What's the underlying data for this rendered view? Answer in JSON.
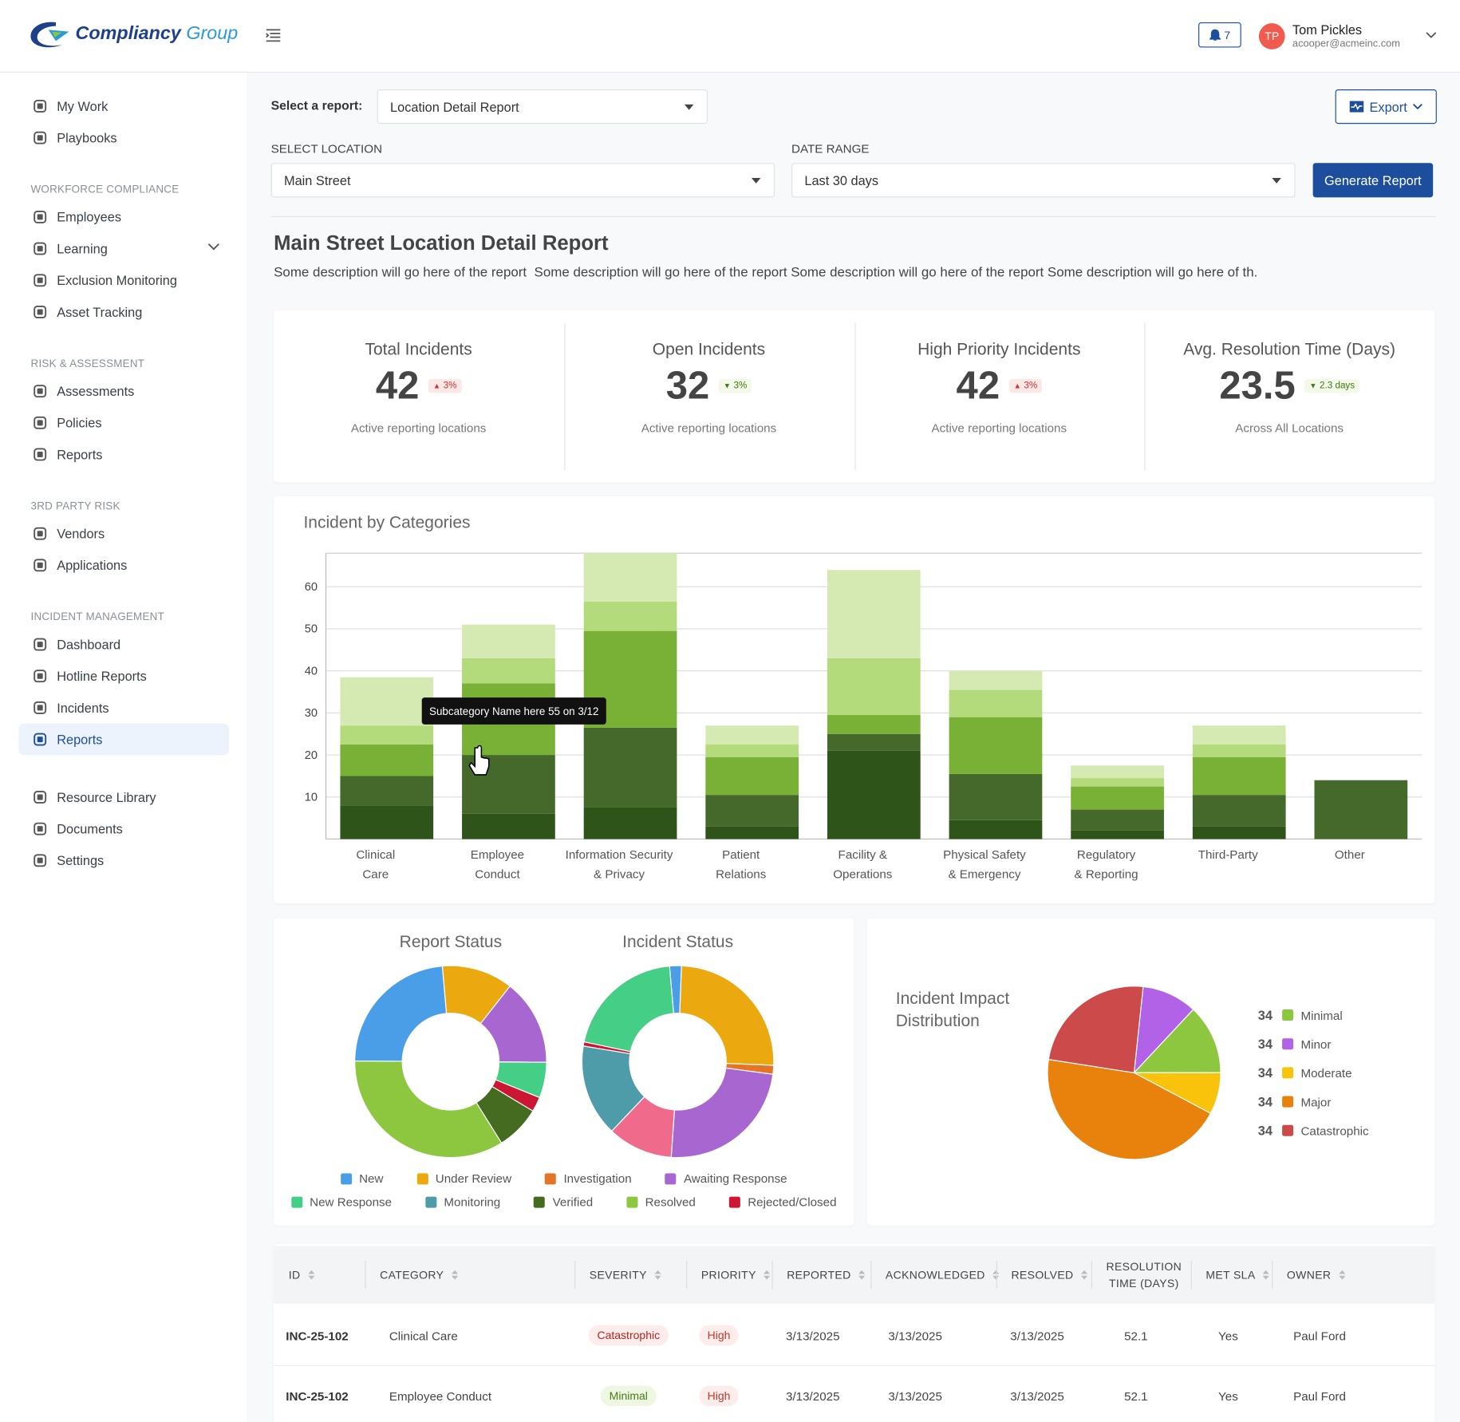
{
  "header": {
    "logo": {
      "brand": "Compliancy",
      "suffix": "Group"
    },
    "notifications": 7,
    "user": {
      "initials": "TP",
      "name": "Tom Pickles",
      "email": "acooper@acmeinc.com"
    }
  },
  "nav": {
    "top": [
      "My Work",
      "Playbooks"
    ],
    "sections": [
      {
        "title": "WORKFORCE COMPLIANCE",
        "items": [
          "Employees",
          "Learning",
          "Exclusion Monitoring",
          "Asset Tracking"
        ]
      },
      {
        "title": "RISK & ASSESSMENT",
        "items": [
          "Assessments",
          "Policies",
          "Reports"
        ]
      },
      {
        "title": "3RD PARTY RISK",
        "items": [
          "Vendors",
          "Applications"
        ]
      },
      {
        "title": "INCIDENT MANAGEMENT",
        "items": [
          "Dashboard",
          "Hotline Reports",
          "Incidents",
          "Reports"
        ]
      }
    ],
    "bottom": [
      "Resource Library",
      "Documents",
      "Settings"
    ],
    "active": {
      "section": 3,
      "item": 3
    },
    "expandable": {
      "section": 0,
      "item": 1
    }
  },
  "report": {
    "select_label": "Select a report:",
    "selected": "Location Detail Report",
    "export": "Export",
    "location_label": "SELECT LOCATION",
    "location": "Main Street",
    "date_label": "DATE RANGE",
    "date": "Last 30 days",
    "generate": "Generate Report",
    "title": "Main Street Location Detail Report",
    "description": "Some description will go here of the report  Some description will go here of the report Some description will go here of the report Some description will go here of th."
  },
  "kpis": [
    {
      "title": "Total Incidents",
      "value": 42,
      "change": "3%",
      "direction": "up",
      "note": "Active reporting locations"
    },
    {
      "title": "Open Incidents",
      "value": 32,
      "change": "3%",
      "direction": "down",
      "note": "Active reporting locations"
    },
    {
      "title": "High Priority Incidents",
      "value": 42,
      "change": "3%",
      "direction": "up",
      "note": "Active reporting locations"
    },
    {
      "title": "Avg. Resolution Time (Days)",
      "value": 23.5,
      "change": "2.3 days",
      "direction": "down",
      "note": "Across All Locations"
    }
  ],
  "chart_data": [
    {
      "type": "bar",
      "stacked": true,
      "title": "Incident by Categories",
      "categories": [
        [
          "Clinical",
          "Care"
        ],
        [
          "Employee",
          "Conduct"
        ],
        [
          "Information Security",
          "& Privacy"
        ],
        [
          "Patient",
          "Relations"
        ],
        [
          "Facility &",
          "Operations"
        ],
        [
          "Physical Safety",
          "& Emergency"
        ],
        [
          "Regulatory",
          "& Reporting"
        ],
        [
          "Third-Party"
        ],
        [
          "Other"
        ]
      ],
      "series": [
        {
          "color": "#2f5419",
          "values": [
            8,
            6,
            7.5,
            3,
            21,
            4.5,
            2,
            3,
            0
          ]
        },
        {
          "color": "#45692a",
          "values": [
            7,
            14,
            19,
            7.5,
            4,
            11,
            5,
            7.5,
            14
          ]
        },
        {
          "color": "#78b135",
          "values": [
            7.5,
            17,
            23,
            9,
            4.5,
            13.5,
            5.5,
            9,
            0
          ]
        },
        {
          "color": "#b3da7b",
          "values": [
            4.5,
            6,
            7,
            3,
            13.5,
            6.5,
            2,
            3,
            0
          ]
        },
        {
          "color": "#d5eab2",
          "values": [
            11.5,
            8,
            11.5,
            4.5,
            21,
            4.5,
            3,
            4.5,
            0
          ]
        }
      ],
      "ylim": [
        0,
        68
      ],
      "yticks": [
        10,
        20,
        30,
        40,
        50,
        60
      ],
      "grid": true,
      "annotation": "Subcategory Name here 55 on 3/12"
    },
    {
      "type": "donut",
      "title": "Report Status",
      "values": [
        12,
        14.5,
        6,
        2.5,
        7.5,
        34,
        23.5
      ],
      "colors": [
        "#eba80f",
        "#a866d0",
        "#45cf86",
        "#cc1634",
        "#446b20",
        "#8dc63f",
        "#4a9ee8"
      ],
      "legend": [
        {
          "name": "New",
          "color": "#4a9ee8"
        },
        {
          "name": "Under Review",
          "color": "#eba80f"
        },
        {
          "name": "Investigation",
          "color": "#e57526"
        },
        {
          "name": "Awaiting Response",
          "color": "#a866d0"
        },
        {
          "name": "New Response",
          "color": "#45cf86"
        },
        {
          "name": "Monitoring",
          "color": "#4e9baa"
        },
        {
          "name": "Verified",
          "color": "#446b20"
        },
        {
          "name": "Resolved",
          "color": "#8dc63f"
        },
        {
          "name": "Rejected/Closed",
          "color": "#cc1634"
        }
      ]
    },
    {
      "type": "donut",
      "title": "Incident Status",
      "values": [
        2,
        25,
        1.5,
        24,
        11,
        15.5,
        0.7,
        20.3
      ],
      "colors": [
        "#4a9ee8",
        "#eba80f",
        "#e57526",
        "#a866d0",
        "#f06b8b",
        "#4e9baa",
        "#cc1634",
        "#45cf86"
      ]
    },
    {
      "type": "pie",
      "title": "Incident Impact Distribution",
      "values": [
        10.3,
        13,
        7.8,
        44.7,
        24.2
      ],
      "colors": [
        "#b162e6",
        "#8dc63f",
        "#f8c30a",
        "#e8820c",
        "#cc4a4a"
      ],
      "legend": [
        {
          "name": "Minimal",
          "color": "#8dc63f",
          "count": 34
        },
        {
          "name": "Minor",
          "color": "#b162e6",
          "count": 34
        },
        {
          "name": "Moderate",
          "color": "#f8c30a",
          "count": 34
        },
        {
          "name": "Major",
          "color": "#e8820c",
          "count": 34
        },
        {
          "name": "Catastrophic",
          "color": "#cc4a4a",
          "count": 34
        }
      ]
    }
  ],
  "table": {
    "columns": [
      "ID",
      "CATEGORY",
      "SEVERITY",
      "PRIORITY",
      "REPORTED",
      "ACKNOWLEDGED",
      "RESOLVED",
      "RESOLUTION TIME (DAYS)",
      "MET SLA",
      "OWNER"
    ],
    "rows": [
      [
        "INC-25-102",
        "Clinical Care",
        "Catastrophic",
        "High",
        "3/13/2025",
        "3/13/2025",
        "3/13/2025",
        52.1,
        "Yes",
        "Paul Ford"
      ],
      [
        "INC-25-102",
        "Employee Conduct",
        "Minimal",
        "High",
        "3/13/2025",
        "3/13/2025",
        "3/13/2025",
        52.1,
        "Yes",
        "Paul Ford"
      ]
    ],
    "severity_colors": [
      "#b3261e",
      "#4a7a16"
    ],
    "severity_backgrounds": [
      "#fdecec",
      "#eef7e2"
    ]
  }
}
